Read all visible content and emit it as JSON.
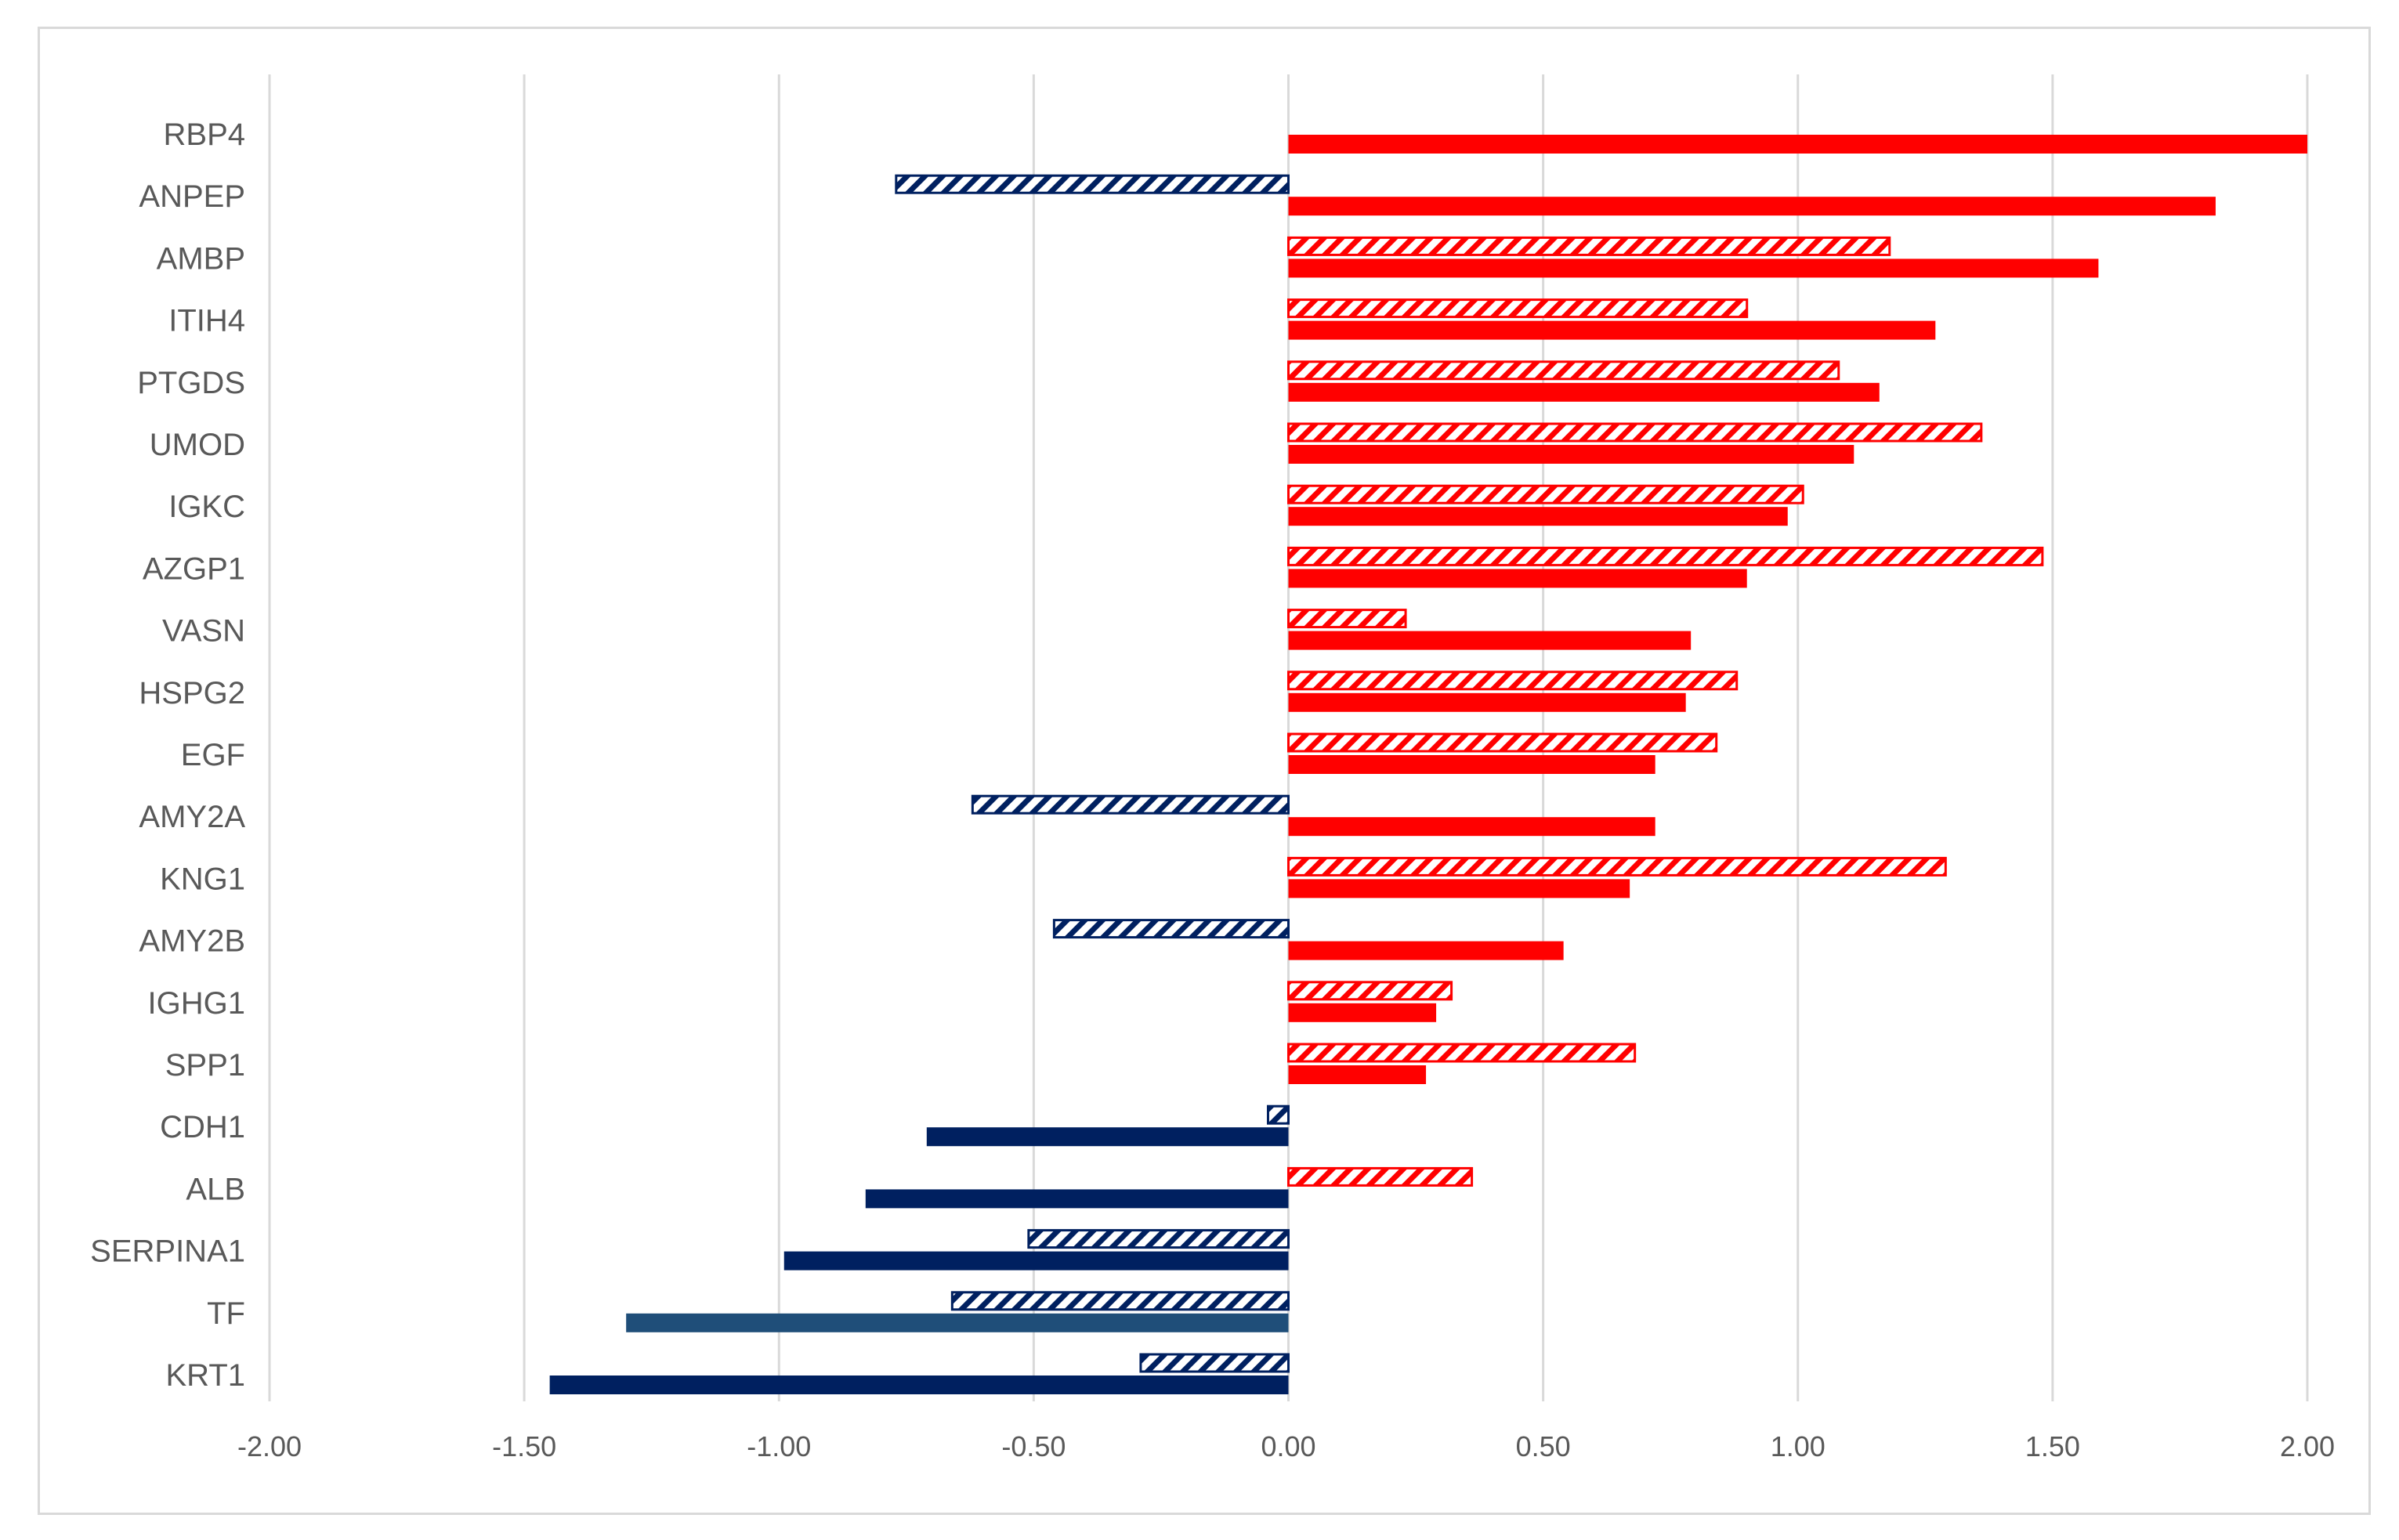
{
  "chart_data": {
    "type": "bar",
    "orientation": "horizontal",
    "title": "",
    "xlabel": "",
    "ylabel": "",
    "xlim": [
      -2.0,
      2.0
    ],
    "x_ticks": [
      "-2.00",
      "-1.50",
      "-1.00",
      "-0.50",
      "0.00",
      "0.50",
      "1.00",
      "1.50",
      "2.00"
    ],
    "x_tick_values": [
      -2.0,
      -1.5,
      -1.0,
      -0.5,
      0.0,
      0.5,
      1.0,
      1.5,
      2.0
    ],
    "grid": "vertical",
    "legend": "none",
    "categories": [
      "RBP4",
      "ANPEP",
      "AMBP",
      "ITIH4",
      "PTGDS",
      "UMOD",
      "IGKC",
      "AZGP1",
      "VASN",
      "HSPG2",
      "EGF",
      "AMY2A",
      "KNG1",
      "AMY2B",
      "IGHG1",
      "SPP1",
      "CDH1",
      "ALB",
      "SERPINA1",
      "TF",
      "KRT1"
    ],
    "series": [
      {
        "name": "hatched",
        "pattern": "hatched",
        "values": [
          null,
          -0.77,
          1.18,
          0.9,
          1.08,
          1.36,
          1.01,
          1.48,
          0.23,
          0.88,
          0.84,
          -0.62,
          1.29,
          -0.46,
          0.32,
          0.68,
          -0.04,
          0.36,
          -0.51,
          -0.66,
          -0.29
        ]
      },
      {
        "name": "solid",
        "pattern": "solid",
        "values": [
          2.0,
          1.82,
          1.59,
          1.27,
          1.16,
          1.11,
          0.98,
          0.9,
          0.79,
          0.78,
          0.72,
          0.72,
          0.67,
          0.54,
          0.29,
          0.27,
          -0.71,
          -0.83,
          -0.99,
          -1.3,
          -1.45
        ]
      }
    ],
    "colors": {
      "positive": "#ff0000",
      "negative": "#002060",
      "negative_alt": "#1f4e79",
      "grid": "#d9d9d9",
      "text": "#595959"
    }
  }
}
